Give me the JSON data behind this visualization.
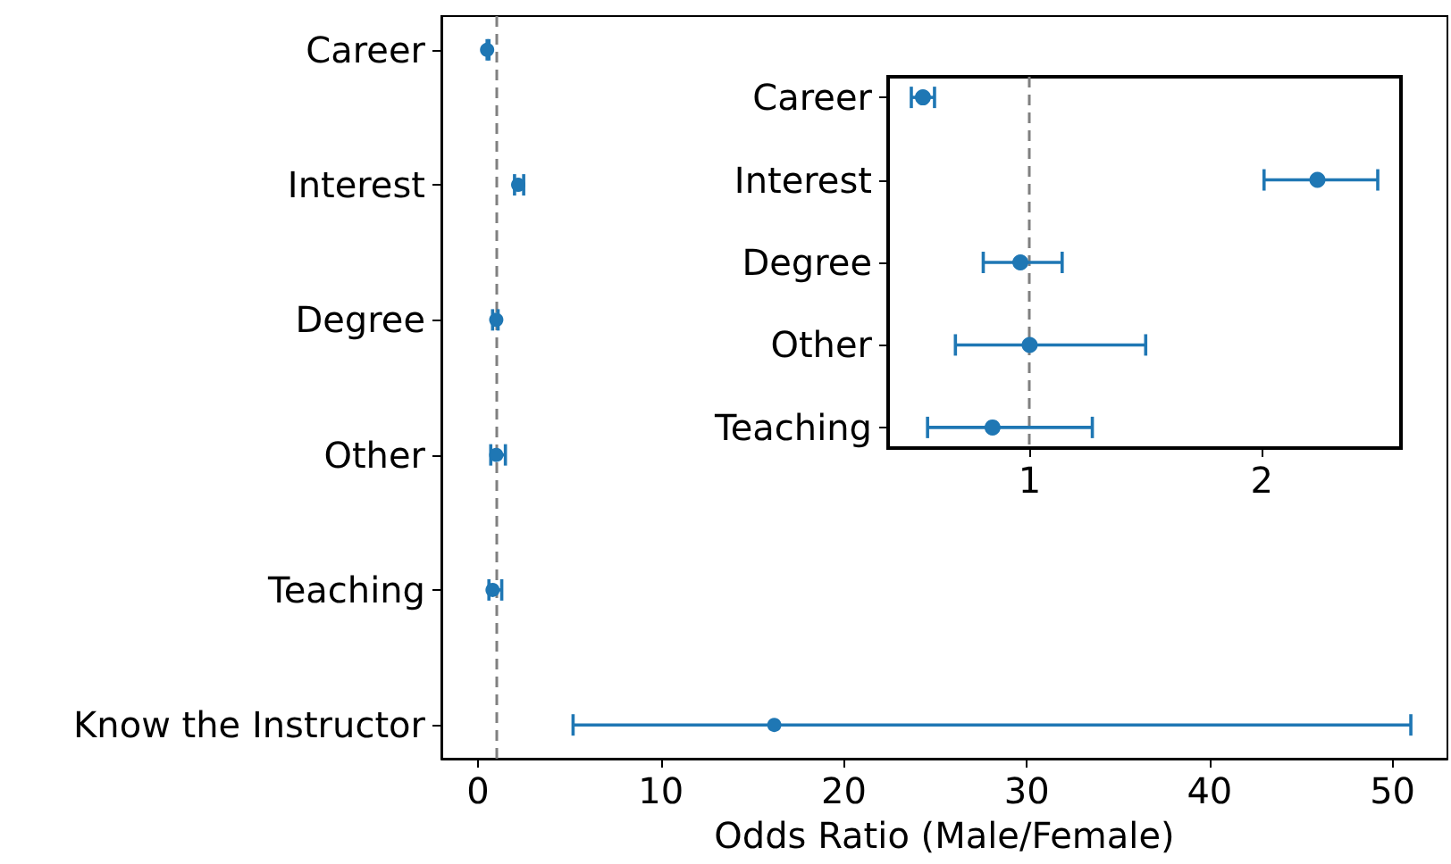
{
  "chart_data": [
    {
      "type": "scatter",
      "orientation": "horizontal",
      "categories": [
        "Career",
        "Interest",
        "Degree",
        "Other",
        "Teaching",
        "Know the Instructor"
      ],
      "series": [
        {
          "color": "#1f77b4",
          "values": [
            0.5,
            2.2,
            1.0,
            1.0,
            0.8,
            16.2
          ],
          "errors": [
            [
              0.5,
              0.6
            ],
            [
              2.0,
              2.5
            ],
            [
              0.8,
              1.1
            ],
            [
              0.7,
              1.5
            ],
            [
              0.6,
              1.3
            ],
            [
              5.2,
              51.0
            ]
          ]
        }
      ],
      "xlabel": "Odds Ratio (Male/Female)",
      "xlim": [
        -2,
        53
      ],
      "xticks": [
        0,
        10,
        20,
        30,
        40,
        50
      ],
      "ref_lines": [
        {
          "axis": "x",
          "value": 1,
          "color": "#808080",
          "line_style": "dashed"
        }
      ],
      "marker": "circle"
    },
    {
      "type": "scatter",
      "orientation": "horizontal",
      "categories": [
        "Career",
        "Interest",
        "Degree",
        "Other",
        "Teaching"
      ],
      "series": [
        {
          "color": "#1f77b4",
          "values": [
            0.54,
            2.24,
            0.96,
            1.0,
            0.84
          ],
          "errors": [
            [
              0.49,
              0.59
            ],
            [
              2.01,
              2.5
            ],
            [
              0.8,
              1.14
            ],
            [
              0.68,
              1.5
            ],
            [
              0.56,
              1.27
            ]
          ]
        }
      ],
      "xlim": [
        0.39,
        2.6
      ],
      "xticks": [
        1,
        2
      ],
      "ref_lines": [
        {
          "axis": "x",
          "value": 1,
          "color": "#808080",
          "line_style": "dashed"
        }
      ],
      "marker": "circle"
    }
  ]
}
